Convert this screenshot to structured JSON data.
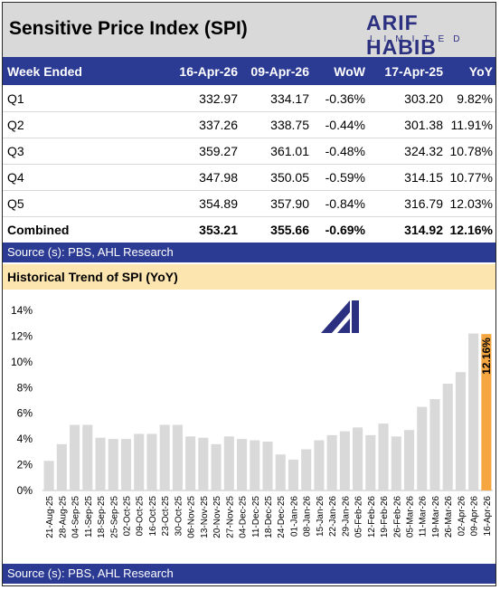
{
  "header": {
    "title": "Sensitive Price Index (SPI)",
    "logo_word": "ARIF HABIB",
    "logo_sub": "LIMITED"
  },
  "table": {
    "columns": [
      "Week Ended",
      "16-Apr-26",
      "09-Apr-26",
      "WoW",
      "17-Apr-25",
      "YoY"
    ],
    "rows": [
      [
        "Q1",
        "332.97",
        "334.17",
        "-0.36%",
        "303.20",
        "9.82%"
      ],
      [
        "Q2",
        "337.26",
        "338.75",
        "-0.44%",
        "301.38",
        "11.91%"
      ],
      [
        "Q3",
        "359.27",
        "361.01",
        "-0.48%",
        "324.32",
        "10.78%"
      ],
      [
        "Q4",
        "347.98",
        "350.05",
        "-0.59%",
        "314.15",
        "10.77%"
      ],
      [
        "Q5",
        "354.89",
        "357.90",
        "-0.84%",
        "316.79",
        "12.03%"
      ],
      [
        "Combined",
        "353.21",
        "355.66",
        "-0.69%",
        "314.92",
        "12.16%"
      ]
    ]
  },
  "source1": "Source (s): PBS, AHL Research",
  "source2": "Source (s): PBS, AHL Research",
  "chart_title": "Historical Trend of SPI (YoY)",
  "colors": {
    "bar": "#d9d9d9",
    "highlight": "#f5a640",
    "navy": "#2b3a93",
    "header_grey": "#d9d9d9",
    "chart_title_bg": "#fde5b0"
  },
  "chart_data": {
    "type": "bar",
    "categories": [
      "21-Aug-25",
      "28-Aug-25",
      "04-Sep-25",
      "11-Sep-25",
      "18-Sep-25",
      "25-Sep-25",
      "02-Oct-25",
      "09-Oct-25",
      "16-Oct-25",
      "23-Oct-25",
      "30-Oct-25",
      "06-Nov-25",
      "13-Nov-25",
      "20-Nov-25",
      "27-Nov-25",
      "04-Dec-25",
      "11-Dec-25",
      "18-Dec-25",
      "24-Dec-25",
      "01-Jan-26",
      "08-Jan-26",
      "15-Jan-26",
      "22-Jan-26",
      "29-Jan-26",
      "05-Feb-26",
      "12-Feb-26",
      "19-Feb-26",
      "26-Feb-26",
      "05-Mar-26",
      "11-Mar-26",
      "19-Mar-26",
      "26-Mar-26",
      "02-Apr-26",
      "09-Apr-26",
      "16-Apr-26"
    ],
    "values": [
      2.3,
      3.6,
      5.1,
      5.1,
      4.1,
      4.0,
      4.0,
      4.4,
      4.4,
      5.1,
      5.1,
      4.2,
      4.1,
      3.6,
      4.2,
      4.0,
      3.9,
      3.8,
      2.8,
      2.4,
      3.2,
      3.9,
      4.3,
      4.6,
      4.9,
      4.3,
      5.2,
      4.2,
      4.7,
      6.5,
      7.1,
      8.3,
      9.2,
      12.2,
      12.16
    ],
    "highlight_index": 34,
    "highlight_label": "12.16%",
    "yticks": [
      "0%",
      "2%",
      "4%",
      "6%",
      "8%",
      "10%",
      "12%",
      "14%"
    ],
    "ylim": [
      0,
      14
    ],
    "grid": false
  }
}
